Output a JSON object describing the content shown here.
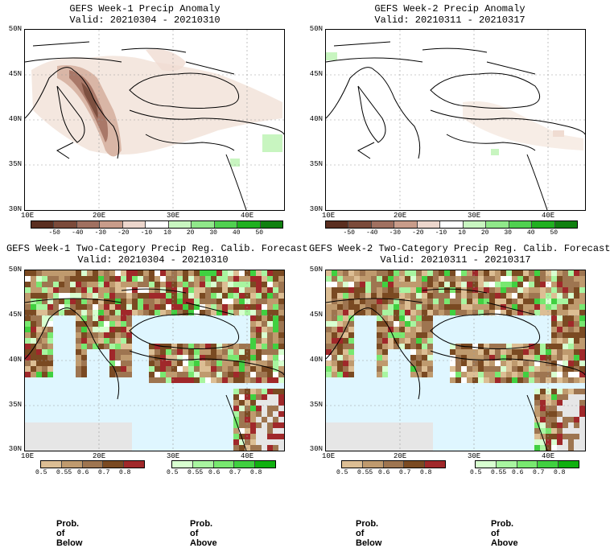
{
  "panels": [
    {
      "id": "p1",
      "title": "GEFS Week-1 Precip Anomaly",
      "valid": "Valid: 20210304 - 20210310"
    },
    {
      "id": "p2",
      "title": "GEFS Week-2 Precip Anomaly",
      "valid": "Valid: 20210311 - 20210317"
    },
    {
      "id": "p3",
      "title": "GEFS Week-1 Two-Category Precip Reg. Calib. Forecast",
      "valid": "Valid: 20210304 - 20210310"
    },
    {
      "id": "p4",
      "title": "GEFS Week-2 Two-Category Precip Reg. Calib. Forecast",
      "valid": "Valid: 20210311 - 20210317"
    }
  ],
  "axes": {
    "lat_labels": [
      "50N",
      "45N",
      "40N",
      "35N",
      "30N"
    ],
    "lon_labels": [
      "10E",
      "20E",
      "30E",
      "40E"
    ]
  },
  "anomaly_colorbar": {
    "labels": [
      "-50",
      "-40",
      "-30",
      "-20",
      "-10",
      "10",
      "20",
      "30",
      "40",
      "50"
    ],
    "colors": [
      "#5a2e20",
      "#7b4a3a",
      "#a07060",
      "#c89c8a",
      "#ecd6cc",
      "#ffffff",
      "#c8f5c0",
      "#90e88a",
      "#50d050",
      "#20b020",
      "#108010"
    ]
  },
  "below_colorbar": {
    "labels": [
      "0.5",
      "0.55",
      "0.6",
      "0.7",
      "0.8"
    ],
    "colors": [
      "#dcbe94",
      "#bf9a6e",
      "#9e7550",
      "#7a4a22",
      "#a0282a"
    ]
  },
  "above_colorbar": {
    "labels": [
      "0.5",
      "0.55",
      "0.6",
      "0.7",
      "0.8"
    ],
    "colors": [
      "#d8ffd0",
      "#a8f5a0",
      "#78e870",
      "#40d040",
      "#10b010"
    ]
  },
  "legend_text": {
    "below": "Prob. of Below",
    "above": "Prob. of Above"
  },
  "colors": {
    "sea": "#dff6ff",
    "below_text": "#7a3a22",
    "above_text": "#20b020",
    "missing": "#e6e6e6"
  }
}
